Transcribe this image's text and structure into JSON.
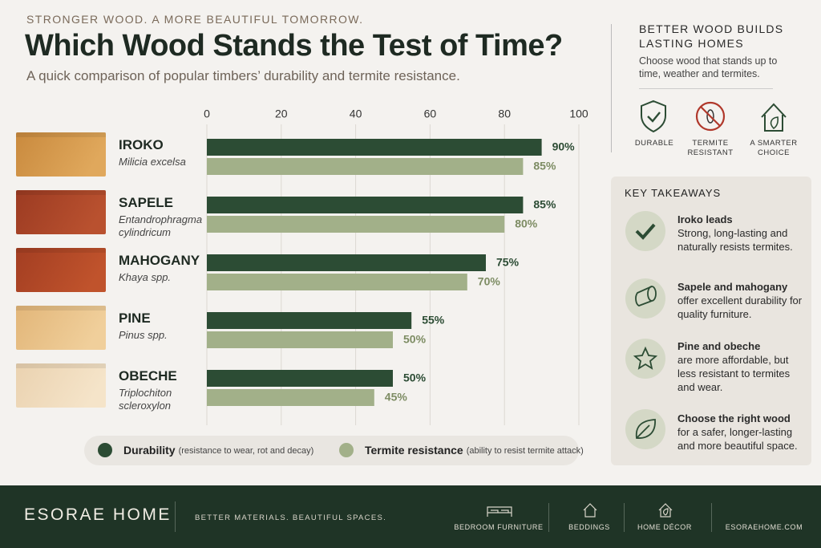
{
  "header": {
    "kicker": "STRONGER WOOD. A MORE BEAUTIFUL TOMORROW.",
    "title": "Which Wood Stands the Test of Time?",
    "subtitle": "A quick comparison of popular timbers’ durability and termite resistance."
  },
  "chart_data": {
    "type": "bar",
    "orientation": "horizontal",
    "categories": [
      "IROKO",
      "SAPELE",
      "MAHOGANY",
      "PINE",
      "OBECHE"
    ],
    "category_subtitles": [
      "Milicia excelsa",
      "Entandrophragma cylindricum",
      "Khaya spp.",
      "Pinus spp.",
      "Triplochiton scleroxylon"
    ],
    "series": [
      {
        "name": "Durability",
        "description": "(resistance to wear, rot and decay)",
        "color": "#2c4c34",
        "values": [
          90,
          85,
          75,
          55,
          50
        ],
        "value_labels": [
          "90%",
          "85%",
          "75%",
          "55%",
          "50%"
        ]
      },
      {
        "name": "Termite resistance",
        "description": "(ability to resist termite attack)",
        "color": "#a2b089",
        "values": [
          85,
          80,
          70,
          50,
          45
        ],
        "value_labels": [
          "85%",
          "80%",
          "70%",
          "50%",
          "45%"
        ]
      }
    ],
    "xlim": [
      0,
      100
    ],
    "xticks": [
      0,
      20,
      40,
      60,
      80,
      100
    ],
    "grid": true
  },
  "sidebar": {
    "title": "BETTER WOOD BUILDS LASTING HOMES",
    "text": "Choose wood that stands up to time, weather and termites.",
    "icons": [
      "DURABLE",
      "TERMITE RESISTANT",
      "A SMARTER CHOICE"
    ]
  },
  "takeaways": {
    "title": "KEY TAKEAWAYS",
    "items": [
      {
        "heading": "Iroko leads",
        "text": "Strong, long-lasting and naturally resists termites."
      },
      {
        "heading": "Sapele and mahogany",
        "text": "offer excellent durability for quality furniture."
      },
      {
        "heading": "Pine and obeche",
        "text": "are more affordable, but less resistant to termites and wear."
      },
      {
        "heading": "Choose the right wood",
        "text": "for a safer, longer-lasting and more beautiful space."
      }
    ]
  },
  "footer": {
    "brand": "ESORAE HOME",
    "tagline": "BETTER MATERIALS. BEAUTIFUL SPACES.",
    "links": [
      "BEDROOM FURNITURE",
      "BEDDINGS",
      "HOME DÉCOR",
      "ESORAEHOME.COM"
    ]
  }
}
